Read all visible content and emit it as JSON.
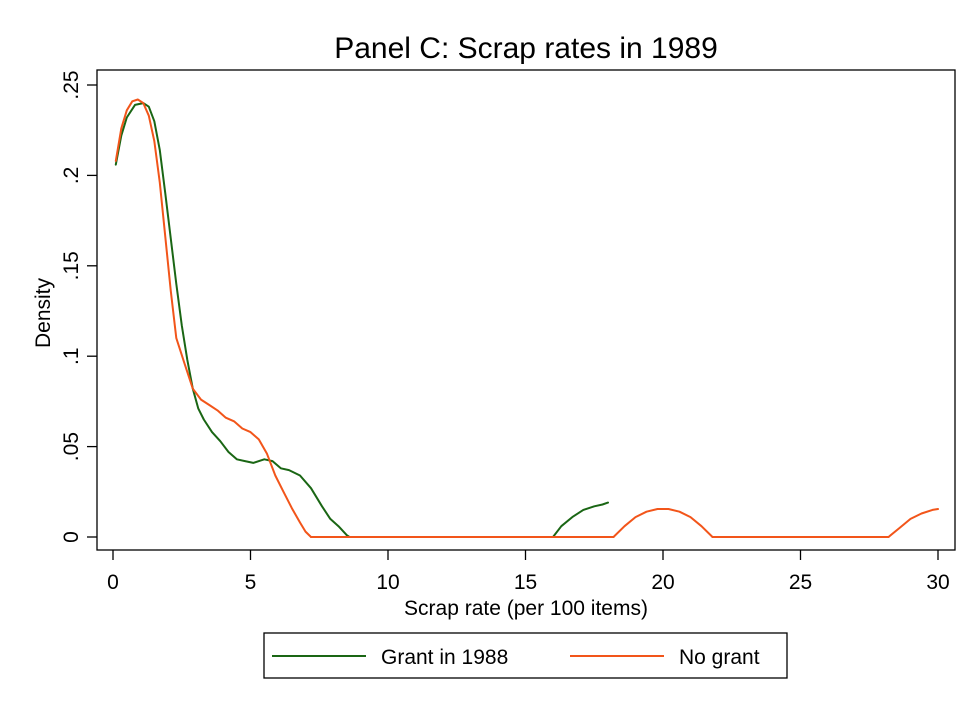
{
  "chart_data": {
    "type": "line",
    "title": "Panel C: Scrap rates in 1989",
    "xlabel": "Scrap rate (per 100 items)",
    "ylabel": "Density",
    "xlim": [
      0,
      30
    ],
    "ylim": [
      0,
      0.25
    ],
    "xticks": [
      0,
      5,
      10,
      15,
      20,
      25,
      30
    ],
    "xtick_labels": [
      "0",
      "5",
      "10",
      "15",
      "20",
      "25",
      "30"
    ],
    "yticks": [
      0,
      0.05,
      0.1,
      0.15,
      0.2,
      0.25
    ],
    "ytick_labels": [
      "0",
      ".05",
      ".1",
      ".15",
      ".2",
      ".25"
    ],
    "grid": false,
    "legend_position": "bottom",
    "series": [
      {
        "name": "Grant in 1988",
        "color": "#1a6614",
        "segments": [
          [
            [
              0.1,
              0.206
            ],
            [
              0.3,
              0.222
            ],
            [
              0.5,
              0.232
            ],
            [
              0.8,
              0.239
            ],
            [
              1.1,
              0.24
            ],
            [
              1.3,
              0.238
            ],
            [
              1.5,
              0.23
            ],
            [
              1.7,
              0.214
            ],
            [
              1.9,
              0.19
            ],
            [
              2.1,
              0.165
            ],
            [
              2.3,
              0.14
            ],
            [
              2.5,
              0.117
            ],
            [
              2.7,
              0.098
            ],
            [
              2.9,
              0.082
            ],
            [
              3.1,
              0.071
            ],
            [
              3.3,
              0.065
            ],
            [
              3.6,
              0.058
            ],
            [
              3.9,
              0.053
            ],
            [
              4.2,
              0.047
            ],
            [
              4.5,
              0.043
            ],
            [
              4.8,
              0.042
            ],
            [
              5.1,
              0.041
            ],
            [
              5.5,
              0.043
            ],
            [
              5.8,
              0.042
            ],
            [
              6.1,
              0.038
            ],
            [
              6.4,
              0.037
            ],
            [
              6.8,
              0.034
            ],
            [
              7.2,
              0.027
            ],
            [
              7.6,
              0.017
            ],
            [
              7.9,
              0.01
            ],
            [
              8.2,
              0.006
            ],
            [
              8.5,
              0.001
            ],
            [
              8.6,
              0.0
            ]
          ],
          [
            [
              8.6,
              0.0
            ],
            [
              16.0,
              0.0
            ]
          ],
          [
            [
              16.0,
              0.0
            ],
            [
              16.3,
              0.006
            ],
            [
              16.7,
              0.011
            ],
            [
              17.1,
              0.015
            ],
            [
              17.5,
              0.017
            ],
            [
              17.8,
              0.018
            ],
            [
              18.0,
              0.019
            ]
          ]
        ]
      },
      {
        "name": "No grant",
        "color": "#f2551a",
        "segments": [
          [
            [
              0.1,
              0.208
            ],
            [
              0.3,
              0.226
            ],
            [
              0.5,
              0.236
            ],
            [
              0.7,
              0.241
            ],
            [
              0.9,
              0.242
            ],
            [
              1.1,
              0.24
            ],
            [
              1.3,
              0.233
            ],
            [
              1.5,
              0.219
            ],
            [
              1.7,
              0.196
            ],
            [
              1.9,
              0.166
            ],
            [
              2.1,
              0.136
            ],
            [
              2.3,
              0.11
            ],
            [
              2.6,
              0.096
            ],
            [
              2.9,
              0.082
            ],
            [
              3.2,
              0.076
            ],
            [
              3.5,
              0.073
            ],
            [
              3.8,
              0.07
            ],
            [
              4.1,
              0.066
            ],
            [
              4.4,
              0.064
            ],
            [
              4.7,
              0.06
            ],
            [
              5.0,
              0.058
            ],
            [
              5.3,
              0.054
            ],
            [
              5.6,
              0.046
            ],
            [
              5.9,
              0.034
            ],
            [
              6.2,
              0.025
            ],
            [
              6.5,
              0.016
            ],
            [
              6.8,
              0.008
            ],
            [
              7.0,
              0.003
            ],
            [
              7.2,
              0.0
            ]
          ],
          [
            [
              7.2,
              0.0
            ],
            [
              18.2,
              0.0
            ]
          ],
          [
            [
              18.2,
              0.0
            ],
            [
              18.6,
              0.006
            ],
            [
              19.0,
              0.011
            ],
            [
              19.4,
              0.014
            ],
            [
              19.8,
              0.0155
            ],
            [
              20.2,
              0.0155
            ],
            [
              20.6,
              0.014
            ],
            [
              21.0,
              0.011
            ],
            [
              21.4,
              0.006
            ],
            [
              21.8,
              0.0
            ]
          ],
          [
            [
              21.8,
              0.0
            ],
            [
              28.2,
              0.0
            ]
          ],
          [
            [
              28.2,
              0.0
            ],
            [
              28.6,
              0.005
            ],
            [
              29.0,
              0.01
            ],
            [
              29.4,
              0.013
            ],
            [
              29.8,
              0.015
            ],
            [
              30.0,
              0.0155
            ]
          ]
        ]
      }
    ]
  }
}
